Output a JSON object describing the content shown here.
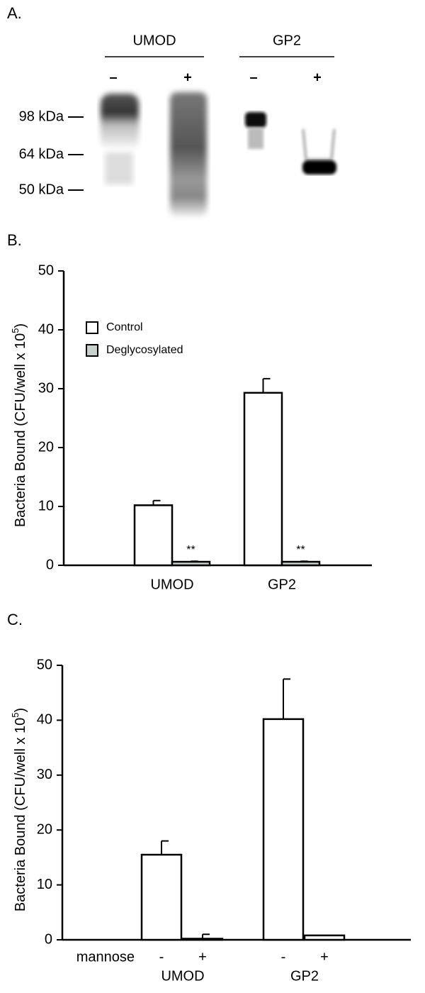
{
  "panel_a": {
    "label": "A.",
    "groups": [
      {
        "name": "UMOD",
        "lanes": [
          "–",
          "+"
        ]
      },
      {
        "name": "GP2",
        "lanes": [
          "–",
          "+"
        ]
      }
    ],
    "markers": [
      "98 kDa",
      "64 kDa",
      "50 kDa"
    ]
  },
  "chart_data": [
    {
      "type": "bar",
      "panel_label": "B.",
      "ylabel": [
        "Bacteria Bound  (CFU/well x 10",
        "5",
        ")"
      ],
      "categories": [
        "UMOD",
        "GP2"
      ],
      "series": [
        {
          "name": "Control",
          "color": "#ffffff",
          "values": [
            10.2,
            29.3
          ],
          "errors": [
            0.8,
            2.4
          ]
        },
        {
          "name": "Deglycosylated",
          "color": "#c9d1cd",
          "values": [
            0.6,
            0.6
          ],
          "errors": [
            0.1,
            0.1
          ],
          "annotations": [
            "**",
            "**"
          ]
        }
      ],
      "ylim": [
        0,
        50
      ],
      "yticks": [
        0,
        10,
        20,
        30,
        40,
        50
      ],
      "legend": "upper left"
    },
    {
      "type": "bar",
      "panel_label": "C.",
      "ylabel": [
        "Bacteria Bound (CFU/well x 10",
        "5",
        ")"
      ],
      "xlabel": "mannose",
      "groups": [
        "UMOD",
        "GP2"
      ],
      "categories": [
        "-",
        "+",
        "-",
        "+"
      ],
      "values": [
        15.5,
        0.2,
        40.2,
        0.8
      ],
      "errors": [
        2.5,
        0.8,
        7.3,
        null
      ],
      "color": "#ffffff",
      "ylim": [
        0,
        50
      ],
      "yticks": [
        0,
        10,
        20,
        30,
        40,
        50
      ]
    }
  ]
}
